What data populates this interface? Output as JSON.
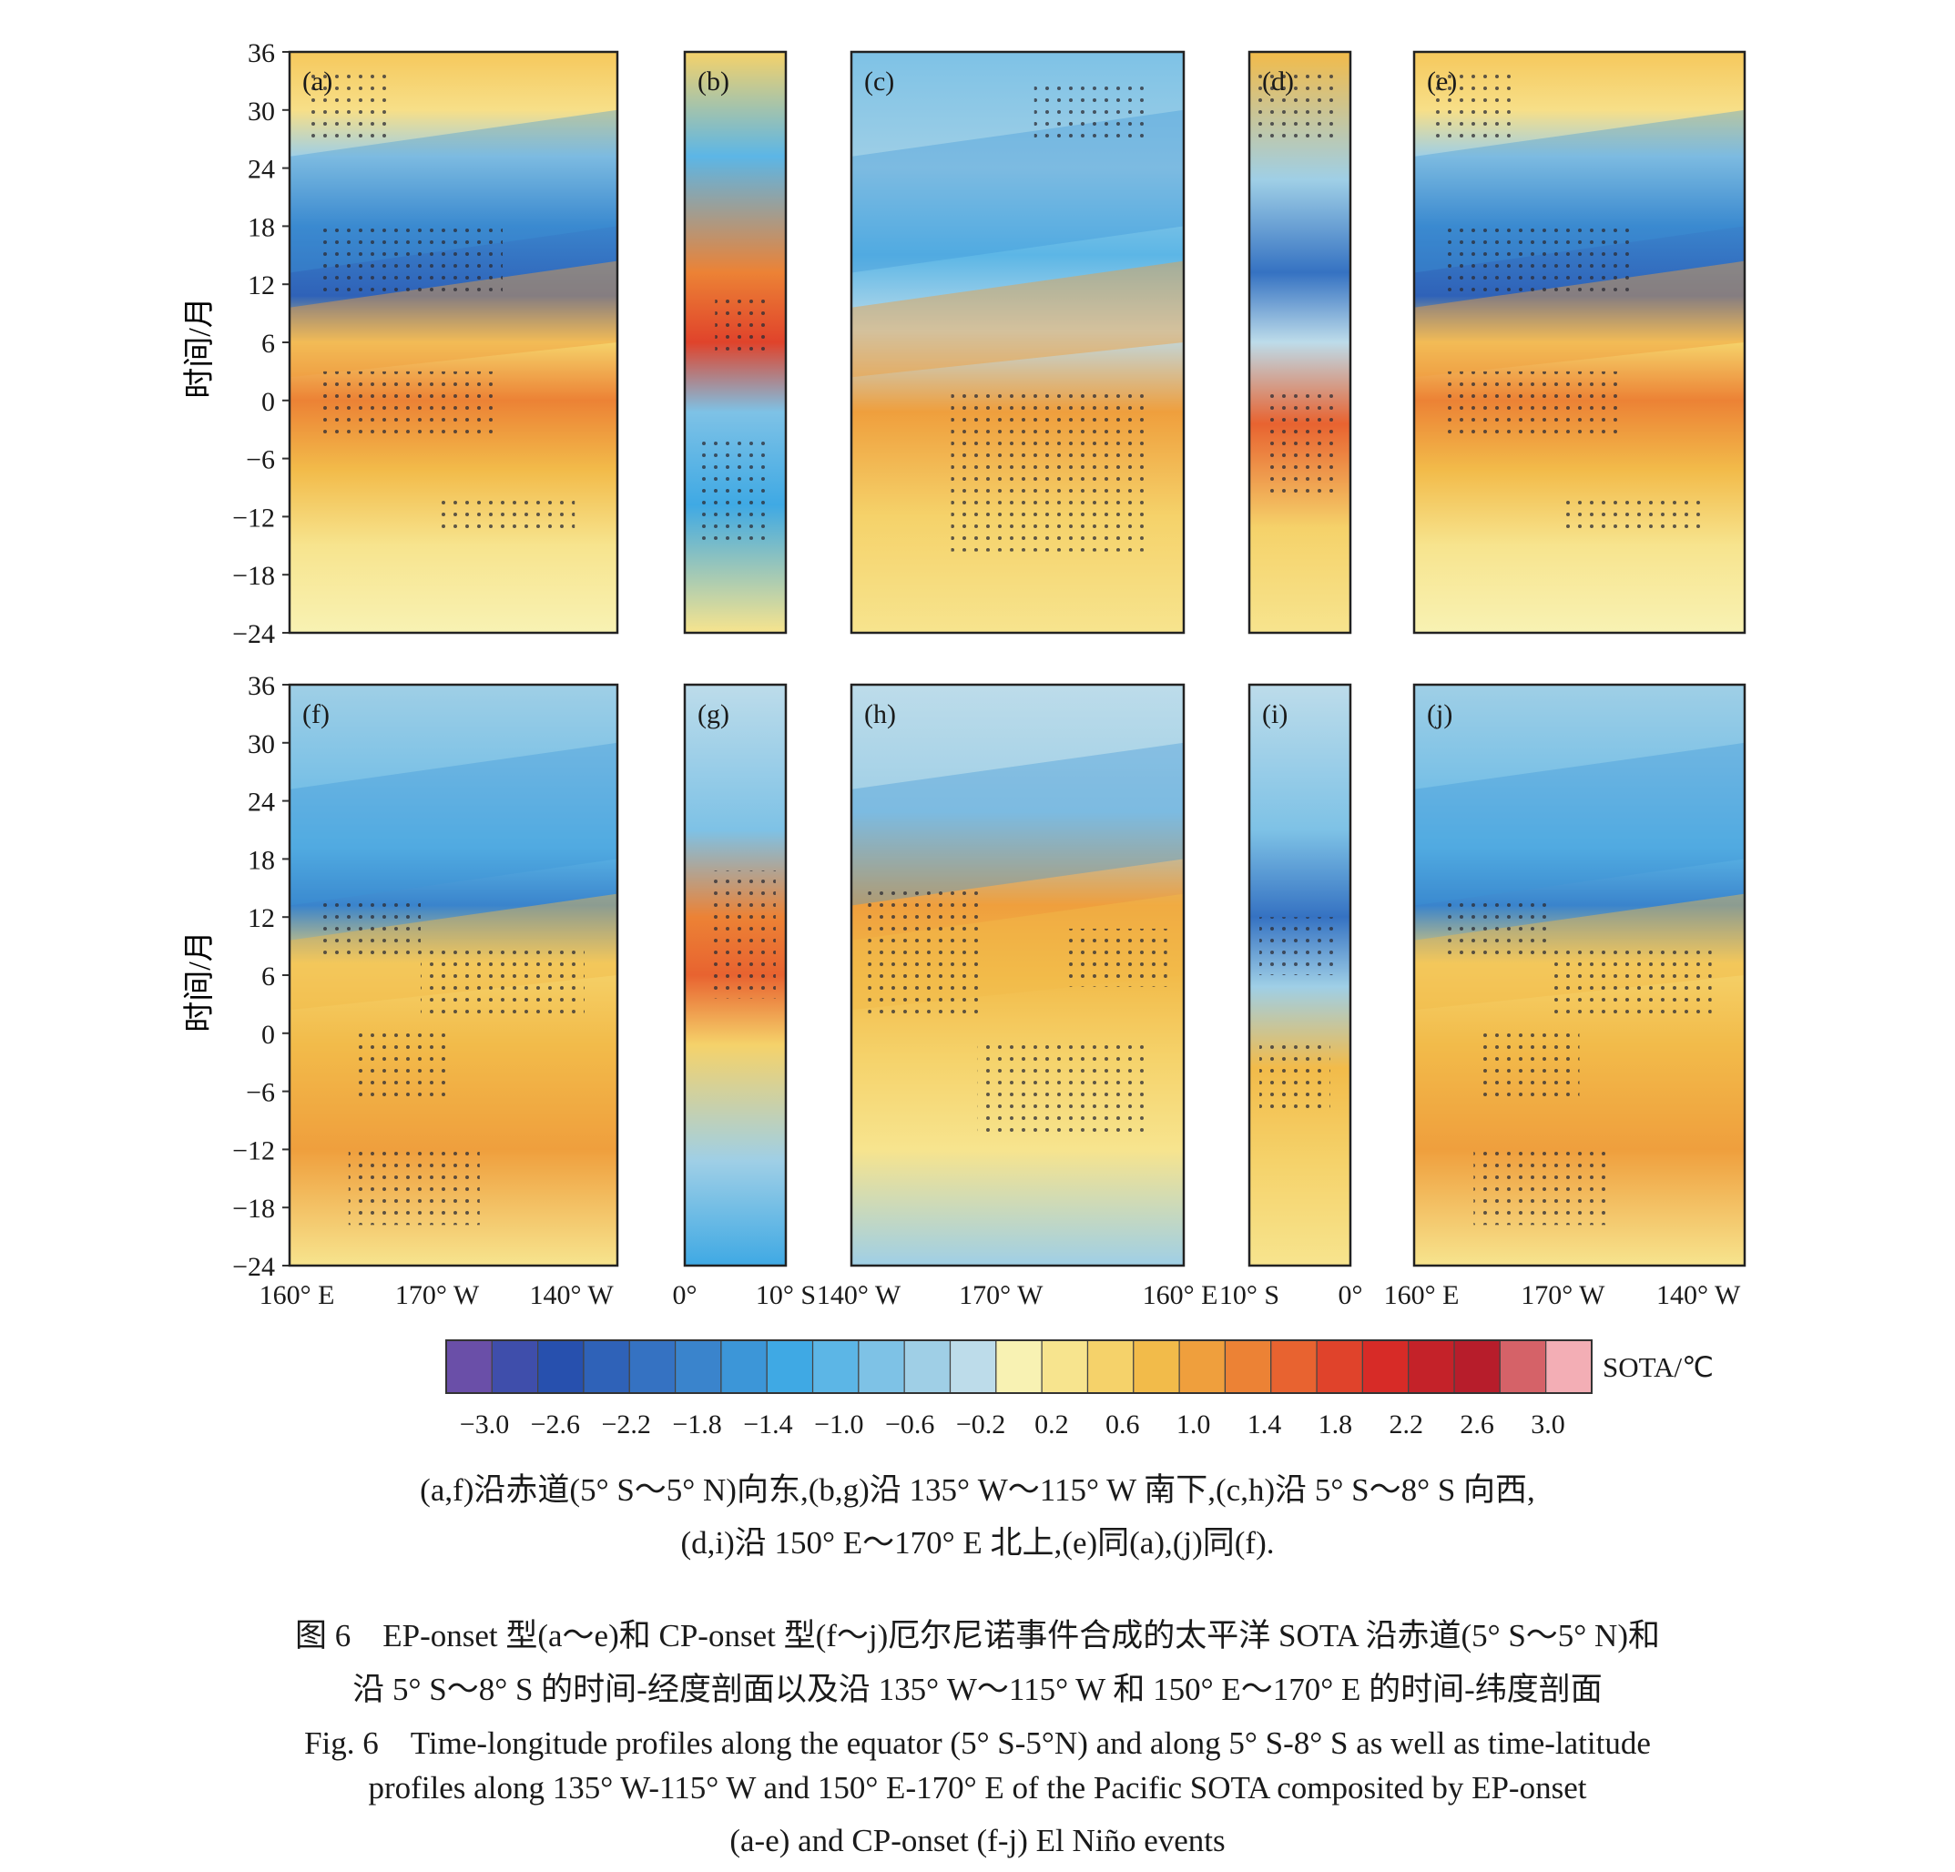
{
  "figure": {
    "y_axis_label": "时间/月",
    "y_ticks": [
      "36",
      "30",
      "24",
      "18",
      "12",
      "6",
      "0",
      "−6",
      "−12",
      "−18",
      "−24"
    ],
    "row1_panels": [
      {
        "label": "(a)",
        "kind": "lon"
      },
      {
        "label": "(b)",
        "kind": "lat"
      },
      {
        "label": "(c)",
        "kind": "lon"
      },
      {
        "label": "(d)",
        "kind": "lat"
      },
      {
        "label": "(e)",
        "kind": "lon"
      }
    ],
    "row2_panels": [
      {
        "label": "(f)",
        "kind": "lon"
      },
      {
        "label": "(g)",
        "kind": "lat"
      },
      {
        "label": "(h)",
        "kind": "lon"
      },
      {
        "label": "(i)",
        "kind": "lat"
      },
      {
        "label": "(j)",
        "kind": "lon"
      }
    ],
    "x_ticks": [
      [
        "160° E",
        "170° W",
        "140° W"
      ],
      [
        "0°",
        "10° S"
      ],
      [
        "140° W",
        "170° W",
        "160° E"
      ],
      [
        "10° S",
        "0°"
      ],
      [
        "160° E",
        "170° W",
        "140° W"
      ]
    ],
    "colorbar": {
      "label": "SOTA/℃",
      "ticks": [
        "−3.0",
        "−2.6",
        "−2.2",
        "−1.8",
        "−1.4",
        "−1.0",
        "−0.6",
        "−0.2",
        "0.2",
        "0.6",
        "1.0",
        "1.4",
        "1.8",
        "2.2",
        "2.6",
        "3.0"
      ],
      "colors": [
        "#6a4fa8",
        "#3f4eab",
        "#2750ae",
        "#2f62b8",
        "#3572c2",
        "#3a84cc",
        "#3c96d8",
        "#3fa9e4",
        "#5cb6e6",
        "#7ec2e6",
        "#9fcfe6",
        "#bddcea",
        "#f8f2b3",
        "#f7e48e",
        "#f5d26a",
        "#f2bb4a",
        "#ef9f3d",
        "#ec8235",
        "#e86330",
        "#e0432b",
        "#d72b27",
        "#c42229",
        "#b71d2b",
        "#d56268",
        "#f3aeb5"
      ]
    }
  },
  "caption": {
    "sub_line1": "(a,f)沿赤道(5° S～5° N)向东,(b,g)沿 135° W～115° W 南下,(c,h)沿 5° S～8° S 向西,",
    "sub_line2": "(d,i)沿 150° E～170° E 北上,(e)同(a),(j)同(f).",
    "cn_line1": "图 6　EP-onset 型(a～e)和 CP-onset 型(f～j)厄尔尼诺事件合成的太平洋 SOTA 沿赤道(5° S～5° N)和",
    "cn_line2": "沿 5° S～8° S 的时间-经度剖面以及沿 135° W～115° W 和 150° E～170° E 的时间-纬度剖面",
    "en_line1": "Fig. 6　Time-longitude profiles along the equator (5° S-5°N) and along 5° S-8° S as well as time-latitude",
    "en_line2": "profiles along 135° W-115° W and 150° E-170° E of the Pacific SOTA composited by EP-onset",
    "en_line3": "(a-e) and CP-onset (f-j) El Niño events"
  }
}
